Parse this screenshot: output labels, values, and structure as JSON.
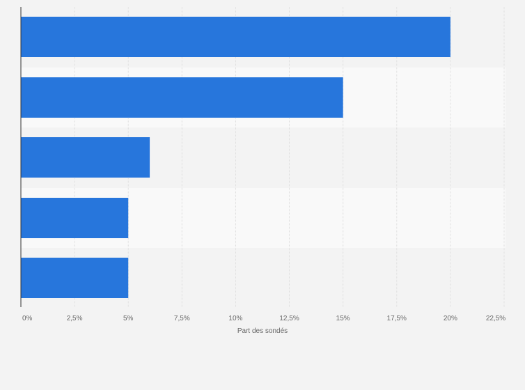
{
  "chart_data": {
    "type": "bar",
    "orientation": "horizontal",
    "categories": [
      "",
      "",
      "",
      "",
      ""
    ],
    "values": [
      20,
      15,
      6,
      5,
      5
    ],
    "xlabel": "Part des sondés",
    "ylabel": "",
    "xlim": [
      0,
      22.5
    ],
    "x_ticks": [
      {
        "value": 0,
        "label": "0%"
      },
      {
        "value": 2.5,
        "label": "2,5%"
      },
      {
        "value": 5,
        "label": "5%"
      },
      {
        "value": 7.5,
        "label": "7,5%"
      },
      {
        "value": 10,
        "label": "10%"
      },
      {
        "value": 12.5,
        "label": "12,5%"
      },
      {
        "value": 15,
        "label": "15%"
      },
      {
        "value": 17.5,
        "label": "17,5%"
      },
      {
        "value": 20,
        "label": "20%"
      },
      {
        "value": 22.5,
        "label": "22,5%"
      }
    ],
    "grid": true,
    "legend": "none",
    "colors": {
      "bar": "#2776dc",
      "band_light": "#f9f9f9",
      "band_dark": "#f3f3f3",
      "grid": "#dddddd",
      "axis": "#333333"
    }
  }
}
